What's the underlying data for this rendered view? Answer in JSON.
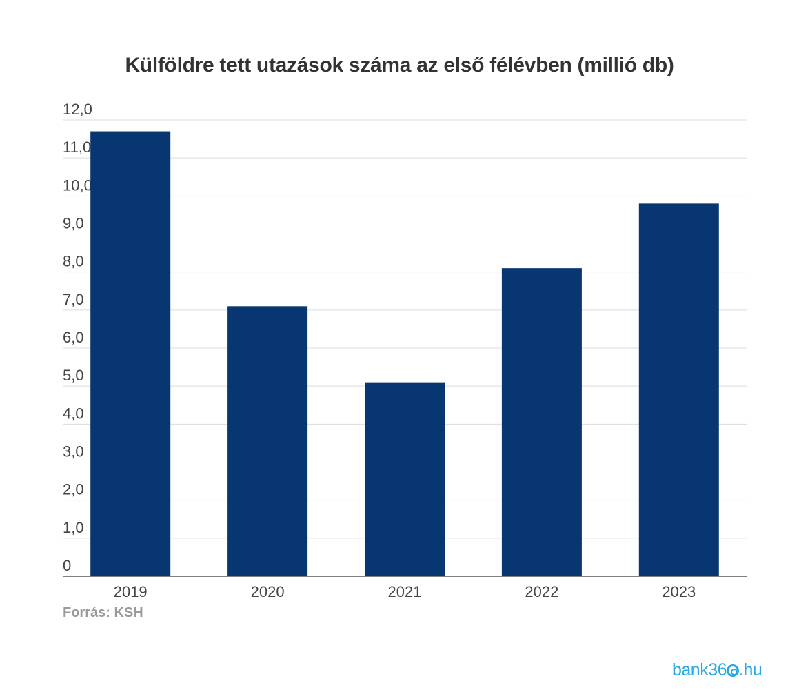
{
  "chart_data": {
    "type": "bar",
    "title": "Külföldre tett utazások száma az első félévben (millió db)",
    "categories": [
      "2019",
      "2020",
      "2021",
      "2022",
      "2023"
    ],
    "values": [
      11.7,
      7.1,
      5.1,
      8.1,
      9.8
    ],
    "yticks": [
      "0",
      "1,0",
      "2,0",
      "3,0",
      "4,0",
      "5,0",
      "6,0",
      "7,0",
      "8,0",
      "9,0",
      "10,0",
      "11,0",
      "12,0"
    ],
    "ylim": [
      0,
      12
    ],
    "xlabel": "",
    "ylabel": "",
    "grid": true,
    "bar_color": "#083670"
  },
  "source": "Forrás: KSH",
  "logo": {
    "pre": "bank36",
    "post": ".hu"
  }
}
